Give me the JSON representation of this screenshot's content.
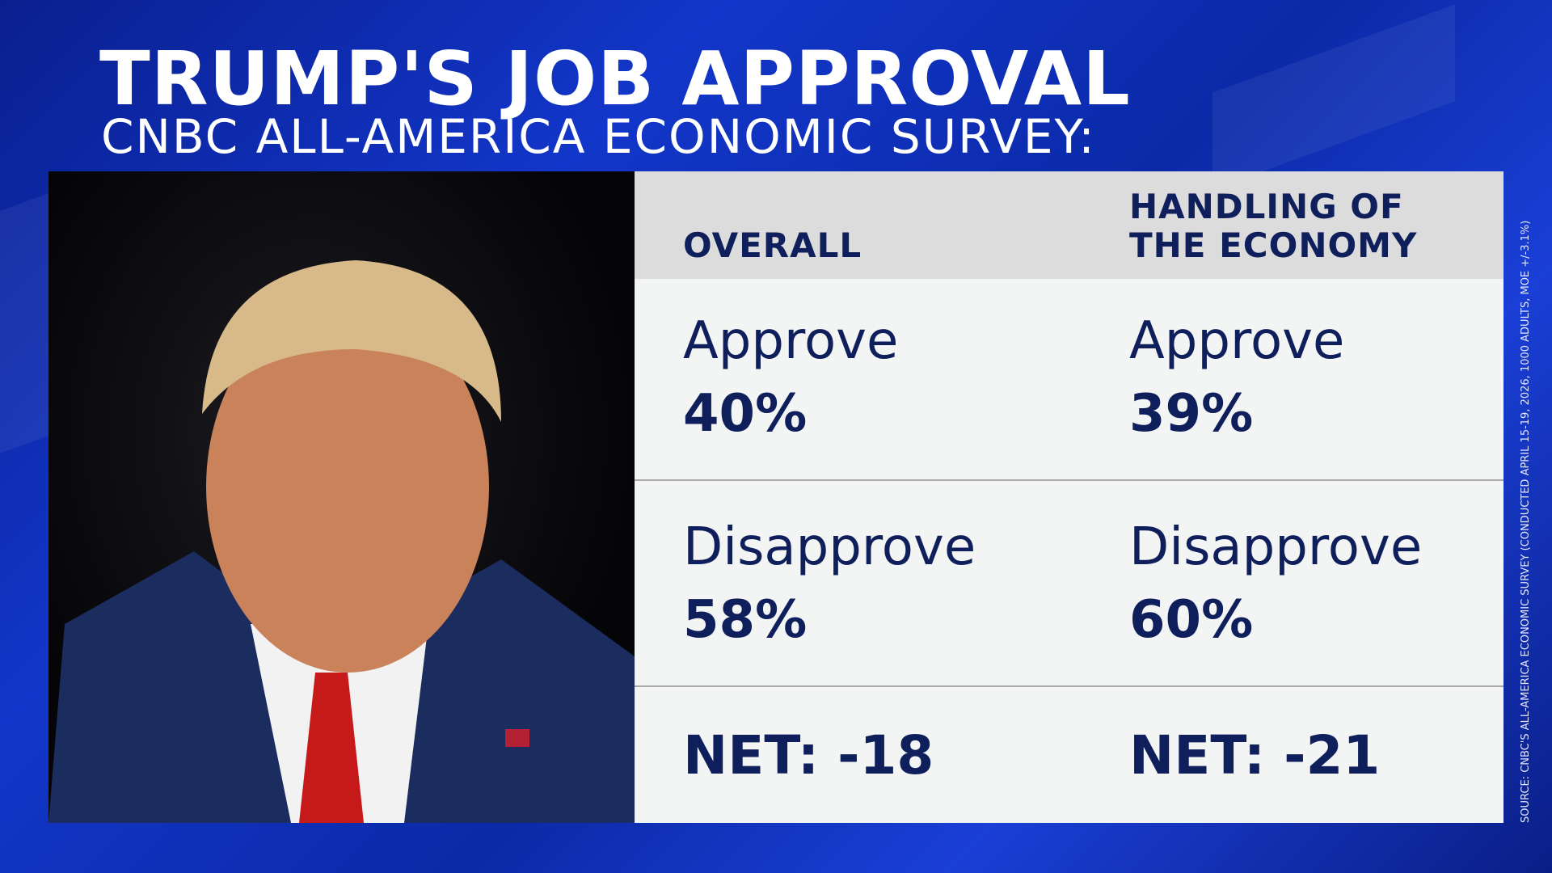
{
  "title": "TRUMP'S JOB APPROVAL",
  "subtitle": "CNBC ALL-AMERICA ECONOMIC SURVEY:",
  "columns": [
    {
      "header": [
        "OVERALL"
      ],
      "approve_label": "Approve",
      "approve": "40%",
      "disapprove_label": "Disapprove",
      "disapprove": "58%",
      "net": "NET: -18"
    },
    {
      "header": [
        "HANDLING OF",
        "THE ECONOMY"
      ],
      "approve_label": "Approve",
      "approve": "39%",
      "disapprove_label": "Disapprove",
      "disapprove": "60%",
      "net": "NET: -21"
    }
  ],
  "source": "SOURCE: CNBC'S ALL-AMERICA ECONOMIC SURVEY (CONDUCTED APRIL 15-19, 2026, 1000 ADULTS, MOE +/-3.1%)",
  "colors": {
    "background": "#1236c9",
    "text_navy": "#0f1f5c",
    "header_gray": "#dcdcdc"
  }
}
